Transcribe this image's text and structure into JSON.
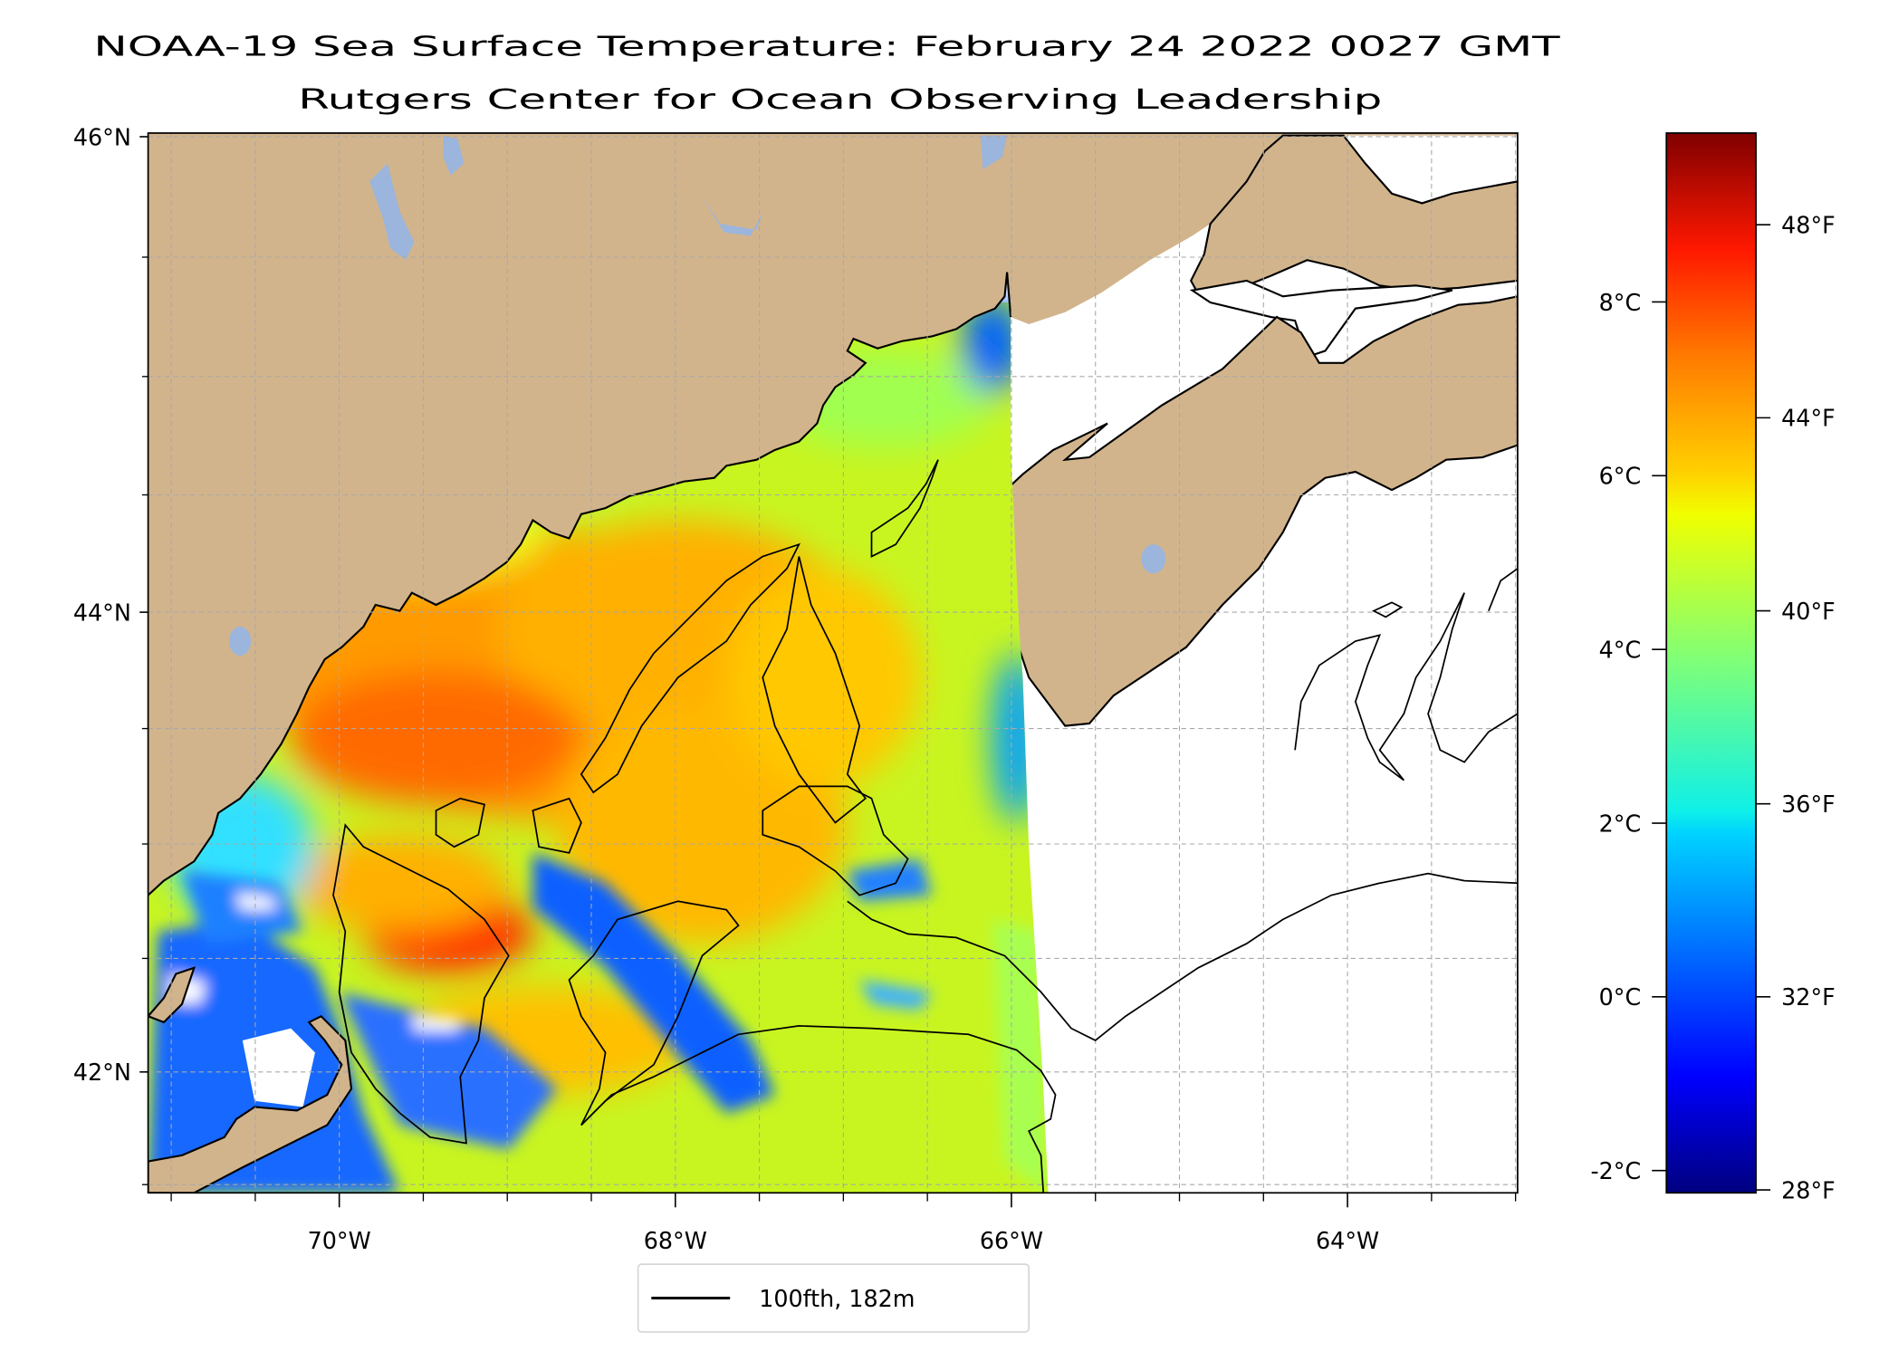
{
  "title": {
    "line1": "NOAA-19 Sea Surface Temperature: February 24 2022 0027 GMT",
    "line2": "Rutgers Center for Ocean Observing Leadership"
  },
  "colors": {
    "land": "#d2b48c",
    "lakes": "#9bb5dc",
    "coastline": "#000000",
    "grid": "#a8a8a8"
  },
  "legend": {
    "entries": [
      {
        "label": "100fth, 182m",
        "color": "#000000"
      }
    ]
  },
  "chart_data": {
    "type": "heatmap",
    "title": "NOAA-19 Sea Surface Temperature: February 24 2022 0027 GMT",
    "subtitle": "Rutgers Center for Ocean Observing Leadership",
    "colormap": "jet",
    "x_axis": {
      "label": "",
      "range": [
        -71.15,
        -63.0
      ],
      "ticks": [
        {
          "value": -70,
          "label": "70°W"
        },
        {
          "value": -68,
          "label": "68°W"
        },
        {
          "value": -66,
          "label": "66°W"
        },
        {
          "value": -64,
          "label": "64°W"
        }
      ],
      "minor_ticks": [
        -71,
        -70.5,
        -69.5,
        -69,
        -68.5,
        -67.5,
        -67,
        -66.5,
        -65.5,
        -65,
        -64.5,
        -63.5,
        -63
      ]
    },
    "y_axis": {
      "label": "",
      "range": [
        41.5,
        46.0
      ],
      "ticks": [
        {
          "value": 46,
          "label": "46°N"
        },
        {
          "value": 44,
          "label": "44°N"
        },
        {
          "value": 42,
          "label": "42°N"
        }
      ],
      "minor_ticks": [
        45.5,
        45,
        44.5,
        43.5,
        43,
        42.5,
        41.5
      ]
    },
    "grid": true,
    "legend_position": "bottom-center",
    "colorbar": {
      "range_f": [
        28,
        50
      ],
      "celsius_ticks": [
        {
          "value": 8,
          "label": "8°C"
        },
        {
          "value": 6,
          "label": "6°C"
        },
        {
          "value": 4,
          "label": "4°C"
        },
        {
          "value": 2,
          "label": "2°C"
        },
        {
          "value": 0,
          "label": "0°C"
        },
        {
          "value": -2,
          "label": "-2°C"
        }
      ],
      "fahrenheit_ticks": [
        {
          "value": 48,
          "label": "48°F"
        },
        {
          "value": 44,
          "label": "44°F"
        },
        {
          "value": 40,
          "label": "40°F"
        },
        {
          "value": 36,
          "label": "36°F"
        },
        {
          "value": 32,
          "label": "32°F"
        },
        {
          "value": 28,
          "label": "28°F"
        }
      ]
    },
    "observations": {
      "warmest_region": "central Gulf of Maine, ~44-46°F",
      "coldest_region": "Cape Cod Bay / nearshore and Nantucket Shoals, ~30-33°F",
      "swath_east_edge_lon": -65.9
    }
  }
}
